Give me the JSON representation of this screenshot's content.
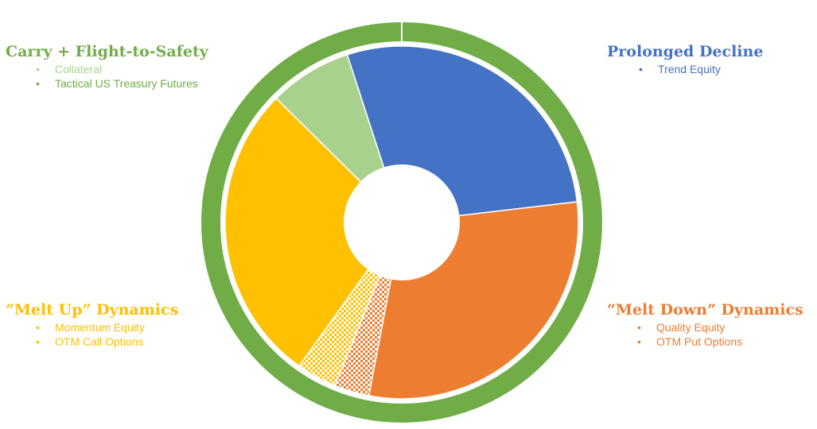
{
  "chart_data": {
    "type": "pie",
    "style": "donut with outer ring",
    "outer_ring": {
      "color": "#70AD47"
    },
    "slices": [
      {
        "name": "Prolonged Decline",
        "value": 24.5,
        "color": "#4472C4",
        "pattern": "solid"
      },
      {
        "name": "Melt Down",
        "value": 26.0,
        "color": "#ED7D31",
        "pattern": "solid"
      },
      {
        "name": "Melt Down (hatched)",
        "value": 2.8,
        "color": "#ED7D31",
        "pattern": "checker"
      },
      {
        "name": "Melt Up (hatched)",
        "value": 3.2,
        "color": "#FFC000",
        "pattern": "checker"
      },
      {
        "name": "Melt Up",
        "value": 24.0,
        "color": "#FFC000",
        "pattern": "solid"
      },
      {
        "name": "Carry + Flight-to-Safety",
        "value": 6.6,
        "color": "#A9D18E",
        "pattern": "solid"
      }
    ],
    "start_angle_deg": -18,
    "legend_placement": "four corners"
  },
  "groups": {
    "carry": {
      "title": "Carry + Flight-to-Safety",
      "color": "#70AD47",
      "items": [
        {
          "label": "Collateral",
          "color": "#A9D18E"
        },
        {
          "label": "Tactical US Treasury Futures",
          "color": "#70AD47"
        }
      ]
    },
    "prolonged": {
      "title": "Prolonged Decline",
      "color": "#4472C4",
      "items": [
        {
          "label": "Trend Equity",
          "color": "#4472C4"
        }
      ]
    },
    "meltup": {
      "title": "“Melt Up” Dynamics",
      "color": "#FFC000",
      "items": [
        {
          "label": "Momentum Equity",
          "color": "#FFC000"
        },
        {
          "label": "OTM Call Options",
          "color": "#FFC000"
        }
      ]
    },
    "meltdown": {
      "title": "“Melt Down” Dynamics",
      "color": "#ED7D31",
      "items": [
        {
          "label": "Quality Equity",
          "color": "#ED7D31"
        },
        {
          "label": "OTM Put Options",
          "color": "#ED7D31"
        }
      ]
    }
  }
}
